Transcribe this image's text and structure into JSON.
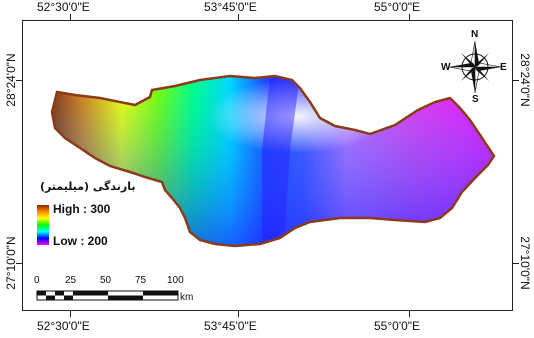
{
  "map": {
    "legend": {
      "title": "بارندگی (میلیمتر)",
      "high_label": "High : 300",
      "low_label": "Low : 200",
      "high_value": 300,
      "low_value": 200,
      "ramp_colors": [
        "#8b2500",
        "#ff8c00",
        "#ffff00",
        "#00ff00",
        "#00ffff",
        "#0000ff",
        "#ff00ff"
      ]
    },
    "longitude_labels": [
      "52°30'0\"E",
      "53°45'0\"E",
      "55°0'0\"E"
    ],
    "latitude_labels": [
      "28°24'0\"N",
      "27°10'0\"N"
    ],
    "scale_bar": {
      "ticks": [
        "0",
        "25",
        "50",
        "75",
        "100"
      ],
      "unit": "km"
    },
    "north_arrow": {
      "n": "N",
      "s": "S",
      "e": "E",
      "w": "W"
    },
    "colors": {
      "boundary": "#8b3a1a",
      "frame": "#222222"
    }
  }
}
